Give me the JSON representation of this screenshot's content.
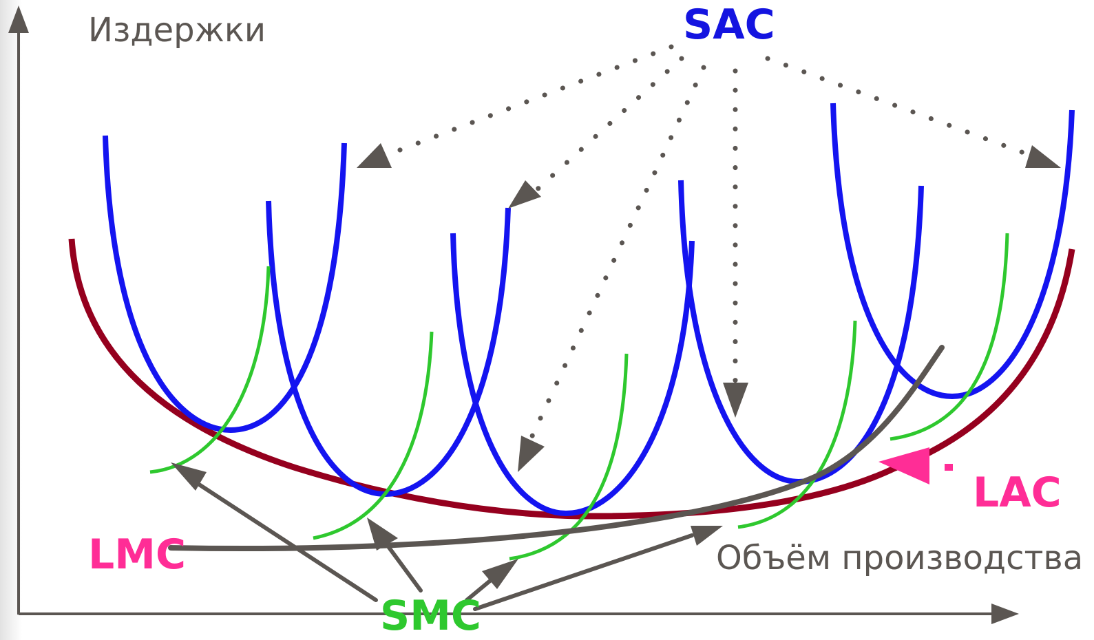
{
  "labels": {
    "y_axis": "Издержки",
    "x_axis": "Объём производства",
    "sac": "SAC",
    "lac": "LAC",
    "lmc": "LMC",
    "smc": "SMC"
  },
  "colors": {
    "axis": "#5b5652",
    "axis_text": "#5b5652",
    "sac": "#1414f0",
    "smc": "#2ec82e",
    "lac": "#95001e",
    "lmc_curve": "#5b5652",
    "arrows": "#5b5652",
    "pink_label": "#ff2d96",
    "green_label": "#2ec82e",
    "blue_label": "#1414e0",
    "left_bar": "#e6e6e6"
  },
  "icons": {
    "axis_arrowheads": "triangle-arrowhead-icon",
    "pointers": "triangle-arrowhead-icon"
  }
}
